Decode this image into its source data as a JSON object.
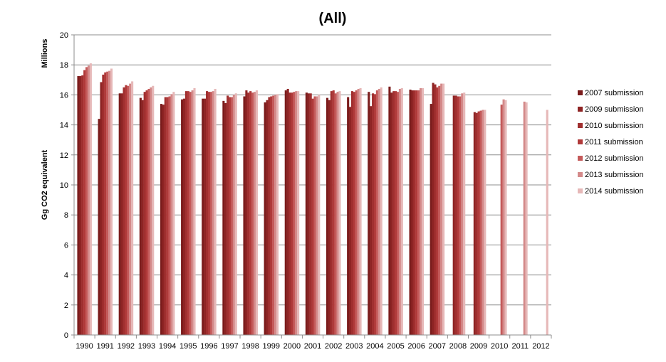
{
  "chart_data": {
    "type": "bar",
    "title": "(All)",
    "ylabel": "Gg CO2 equivalent",
    "yunit_label": "Millions",
    "xlabel": "",
    "ylim": [
      0,
      20
    ],
    "yticks": [
      "0",
      "2",
      "4",
      "6",
      "8",
      "10",
      "12",
      "14",
      "16",
      "18",
      "20"
    ],
    "grid": true,
    "legend_position": "right",
    "categories": [
      "1990",
      "1991",
      "1992",
      "1993",
      "1994",
      "1995",
      "1996",
      "1997",
      "1998",
      "1999",
      "2000",
      "2001",
      "2002",
      "2003",
      "2004",
      "2005",
      "2006",
      "2007",
      "2008",
      "2009",
      "2010",
      "2011",
      "2012"
    ],
    "series": [
      {
        "name": "2007 submission",
        "color": "#7b1c1c",
        "values": [
          17.25,
          14.4,
          16.1,
          15.8,
          15.4,
          15.7,
          15.75,
          15.6,
          15.9,
          15.5,
          16.3,
          16.15,
          15.8,
          15.85,
          16.2,
          16.55,
          16.35,
          15.4,
          null,
          null,
          null,
          null,
          null
        ]
      },
      {
        "name": "2009 submission",
        "color": "#8e2424",
        "values": [
          17.25,
          16.85,
          16.1,
          15.65,
          15.35,
          15.75,
          15.75,
          15.45,
          16.3,
          15.65,
          16.4,
          16.1,
          15.65,
          15.2,
          15.25,
          16.15,
          16.3,
          16.8,
          15.95,
          14.85,
          null,
          null,
          null
        ]
      },
      {
        "name": "2010 submission",
        "color": "#a02f2f",
        "values": [
          17.3,
          17.35,
          16.5,
          16.2,
          15.85,
          16.25,
          16.25,
          15.95,
          16.15,
          15.85,
          16.15,
          16.1,
          16.25,
          16.25,
          16.1,
          16.25,
          16.3,
          16.7,
          15.95,
          14.8,
          null,
          null,
          null
        ]
      },
      {
        "name": "2011 submission",
        "color": "#b03a3a",
        "values": [
          17.65,
          17.5,
          16.65,
          16.3,
          15.85,
          16.25,
          16.2,
          15.85,
          16.25,
          15.9,
          16.15,
          15.75,
          16.3,
          16.2,
          16.05,
          16.25,
          16.3,
          16.5,
          15.9,
          14.9,
          null,
          null,
          null
        ]
      },
      {
        "name": "2012 submission",
        "color": "#c45a5a",
        "values": [
          17.85,
          17.55,
          16.6,
          16.4,
          15.9,
          16.2,
          16.2,
          15.85,
          16.15,
          15.95,
          16.2,
          15.9,
          16.1,
          16.3,
          16.3,
          16.2,
          16.3,
          16.6,
          15.9,
          14.95,
          15.35,
          null,
          null
        ]
      },
      {
        "name": "2013 submission",
        "color": "#d48a8a",
        "values": [
          17.95,
          17.6,
          16.75,
          16.5,
          16.05,
          16.3,
          16.25,
          16.0,
          16.2,
          16.0,
          16.25,
          15.9,
          16.2,
          16.4,
          16.4,
          16.4,
          16.45,
          16.75,
          16.1,
          15.0,
          15.7,
          15.55,
          null
        ]
      },
      {
        "name": "2014 submission",
        "color": "#e6b8b8",
        "values": [
          18.1,
          17.75,
          16.9,
          16.6,
          16.2,
          16.45,
          16.4,
          16.1,
          16.3,
          16.05,
          16.25,
          16.0,
          16.25,
          16.45,
          16.5,
          16.45,
          16.45,
          16.75,
          16.15,
          15.0,
          15.65,
          15.5,
          15.0
        ]
      }
    ]
  }
}
